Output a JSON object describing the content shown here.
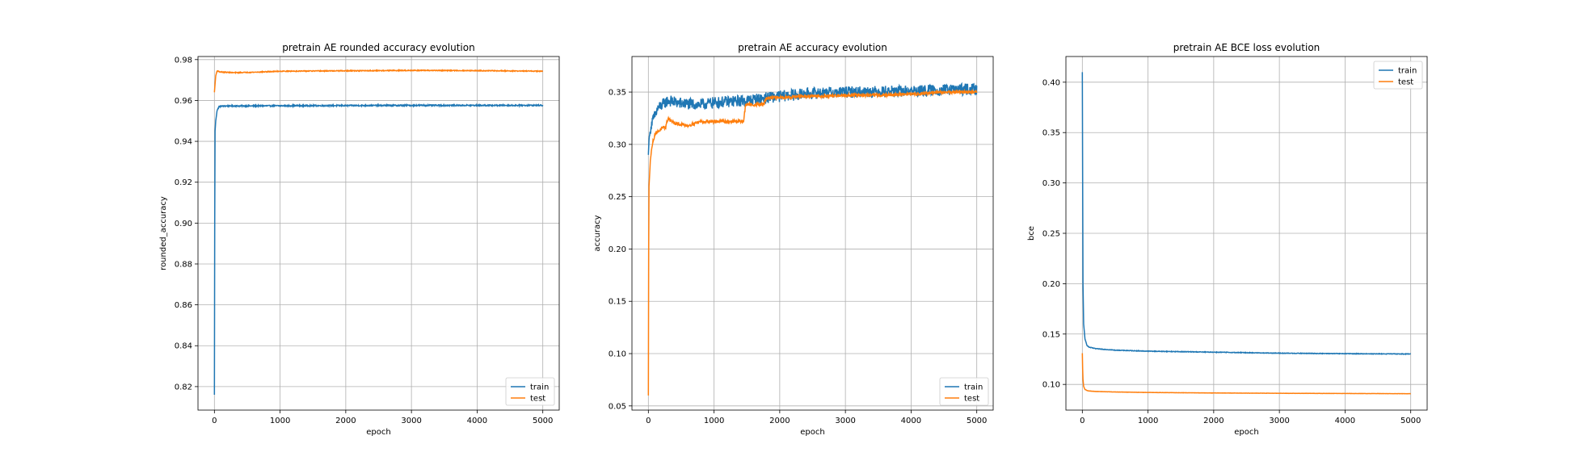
{
  "colors": {
    "train": "#1f77b4",
    "test": "#ff7f0e",
    "grid": "#b0b0b0"
  },
  "chart_data": [
    {
      "type": "line",
      "title": "pretrain AE rounded accuracy evolution",
      "xlabel": "epoch",
      "ylabel": "rounded_accuracy",
      "xlim": [
        -250,
        5250
      ],
      "ylim": [
        0.8085,
        0.9815
      ],
      "xticks": [
        0,
        1000,
        2000,
        3000,
        4000,
        5000
      ],
      "yticks": [
        0.82,
        0.84,
        0.86,
        0.88,
        0.9,
        0.92,
        0.94,
        0.96,
        0.98
      ],
      "ytick_labels": [
        "0.82",
        "0.84",
        "0.86",
        "0.88",
        "0.90",
        "0.92",
        "0.94",
        "0.96",
        "0.98"
      ],
      "grid": true,
      "legend": "lower-right",
      "series": [
        {
          "name": "train",
          "x": [
            0,
            5,
            10,
            20,
            40,
            70,
            100,
            200,
            500,
            1000,
            2000,
            3000,
            4000,
            5000
          ],
          "y": [
            0.816,
            0.9,
            0.945,
            0.95,
            0.955,
            0.957,
            0.9572,
            0.9573,
            0.9573,
            0.9574,
            0.9575,
            0.9576,
            0.9576,
            0.9576
          ],
          "noise": 0.0003
        },
        {
          "name": "test",
          "x": [
            0,
            10,
            20,
            40,
            80,
            150,
            300,
            600,
            1000,
            2000,
            3000,
            4000,
            5000
          ],
          "y": [
            0.964,
            0.968,
            0.972,
            0.9745,
            0.974,
            0.9738,
            0.9736,
            0.9738,
            0.9743,
            0.9745,
            0.9747,
            0.9746,
            0.9743
          ],
          "noise": 0.0002
        }
      ]
    },
    {
      "type": "line",
      "title": "pretrain AE accuracy evolution",
      "xlabel": "epoch",
      "ylabel": "accuracy",
      "xlim": [
        -250,
        5250
      ],
      "ylim": [
        0.046,
        0.384
      ],
      "xticks": [
        0,
        1000,
        2000,
        3000,
        4000,
        5000
      ],
      "yticks": [
        0.05,
        0.1,
        0.15,
        0.2,
        0.25,
        0.3,
        0.35
      ],
      "ytick_labels": [
        "0.05",
        "0.10",
        "0.15",
        "0.20",
        "0.25",
        "0.30",
        "0.35"
      ],
      "grid": true,
      "legend": "lower-right",
      "series": [
        {
          "name": "train",
          "x": [
            0,
            10,
            50,
            150,
            300,
            500,
            800,
            1000,
            1500,
            2000,
            2500,
            3000,
            4000,
            5000
          ],
          "y": [
            0.29,
            0.305,
            0.32,
            0.335,
            0.342,
            0.339,
            0.338,
            0.34,
            0.342,
            0.346,
            0.349,
            0.35,
            0.351,
            0.353
          ],
          "noise": 0.0055
        },
        {
          "name": "test",
          "x": [
            0,
            5,
            10,
            30,
            60,
            100,
            200,
            260,
            300,
            400,
            600,
            800,
            1000,
            1200,
            1450,
            1480,
            1750,
            1800,
            2000,
            2500,
            3000,
            3500,
            4000,
            4500,
            5000
          ],
          "y": [
            0.06,
            0.2,
            0.26,
            0.285,
            0.3,
            0.31,
            0.315,
            0.316,
            0.325,
            0.32,
            0.318,
            0.322,
            0.322,
            0.322,
            0.322,
            0.338,
            0.338,
            0.344,
            0.345,
            0.346,
            0.347,
            0.347,
            0.348,
            0.35,
            0.35
          ],
          "noise": 0.0015
        }
      ]
    },
    {
      "type": "line",
      "title": "pretrain AE BCE loss evolution",
      "xlabel": "epoch",
      "ylabel": "bce",
      "xlim": [
        -250,
        5250
      ],
      "ylim": [
        0.0745,
        0.4255
      ],
      "xticks": [
        0,
        1000,
        2000,
        3000,
        4000,
        5000
      ],
      "yticks": [
        0.1,
        0.15,
        0.2,
        0.25,
        0.3,
        0.35,
        0.4
      ],
      "ytick_labels": [
        "0.10",
        "0.15",
        "0.20",
        "0.25",
        "0.30",
        "0.35",
        "0.40"
      ],
      "grid": true,
      "legend": "upper-right",
      "series": [
        {
          "name": "train",
          "x": [
            0,
            5,
            10,
            20,
            40,
            70,
            100,
            200,
            500,
            1000,
            2000,
            3000,
            4000,
            5000
          ],
          "y": [
            0.41,
            0.3,
            0.2,
            0.16,
            0.145,
            0.139,
            0.137,
            0.1355,
            0.134,
            0.133,
            0.132,
            0.131,
            0.1305,
            0.1302
          ],
          "noise": 0.0003
        },
        {
          "name": "test",
          "x": [
            0,
            5,
            10,
            20,
            40,
            70,
            100,
            200,
            500,
            1000,
            2000,
            3000,
            4000,
            5000
          ],
          "y": [
            0.131,
            0.115,
            0.105,
            0.098,
            0.095,
            0.094,
            0.0935,
            0.093,
            0.0925,
            0.092,
            0.0915,
            0.0912,
            0.091,
            0.0908
          ],
          "noise": 0.0001
        }
      ]
    }
  ]
}
